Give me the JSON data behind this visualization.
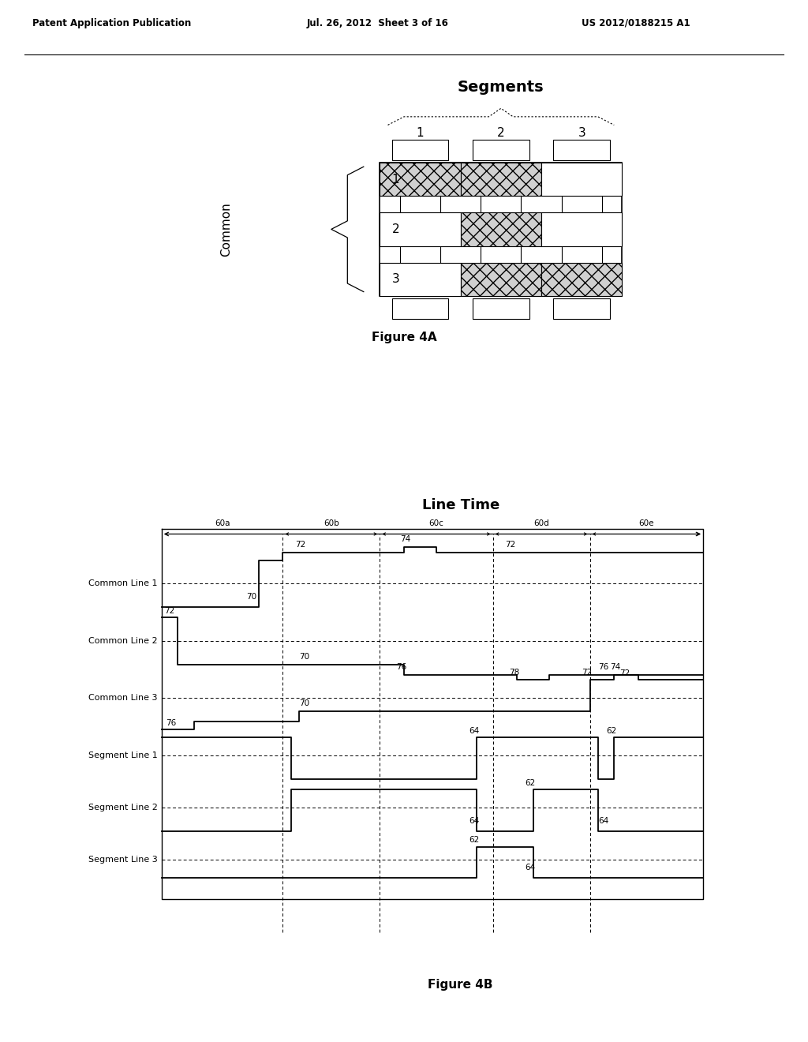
{
  "header_left": "Patent Application Publication",
  "header_mid": "Jul. 26, 2012  Sheet 3 of 16",
  "header_right": "US 2012/0188215 A1",
  "fig4a_title": "Segments",
  "fig4a_common_label": "Common",
  "fig4a_seg_labels": [
    "1",
    "2",
    "3"
  ],
  "fig4a_row_labels": [
    "1",
    "2",
    "3"
  ],
  "fig4b_title": "Line Time",
  "fig4b_caption": "Figure 4B",
  "fig4a_caption": "Figure 4A",
  "time_labels": [
    "60a",
    "60b",
    "60c",
    "60d",
    "60e"
  ],
  "waveform_labels": [
    "Common Line 1",
    "Common Line 2",
    "Common Line 3",
    "Segment Line 1",
    "Segment Line 2",
    "Segment Line 3"
  ],
  "bg_color": "#ffffff",
  "line_color": "#000000"
}
